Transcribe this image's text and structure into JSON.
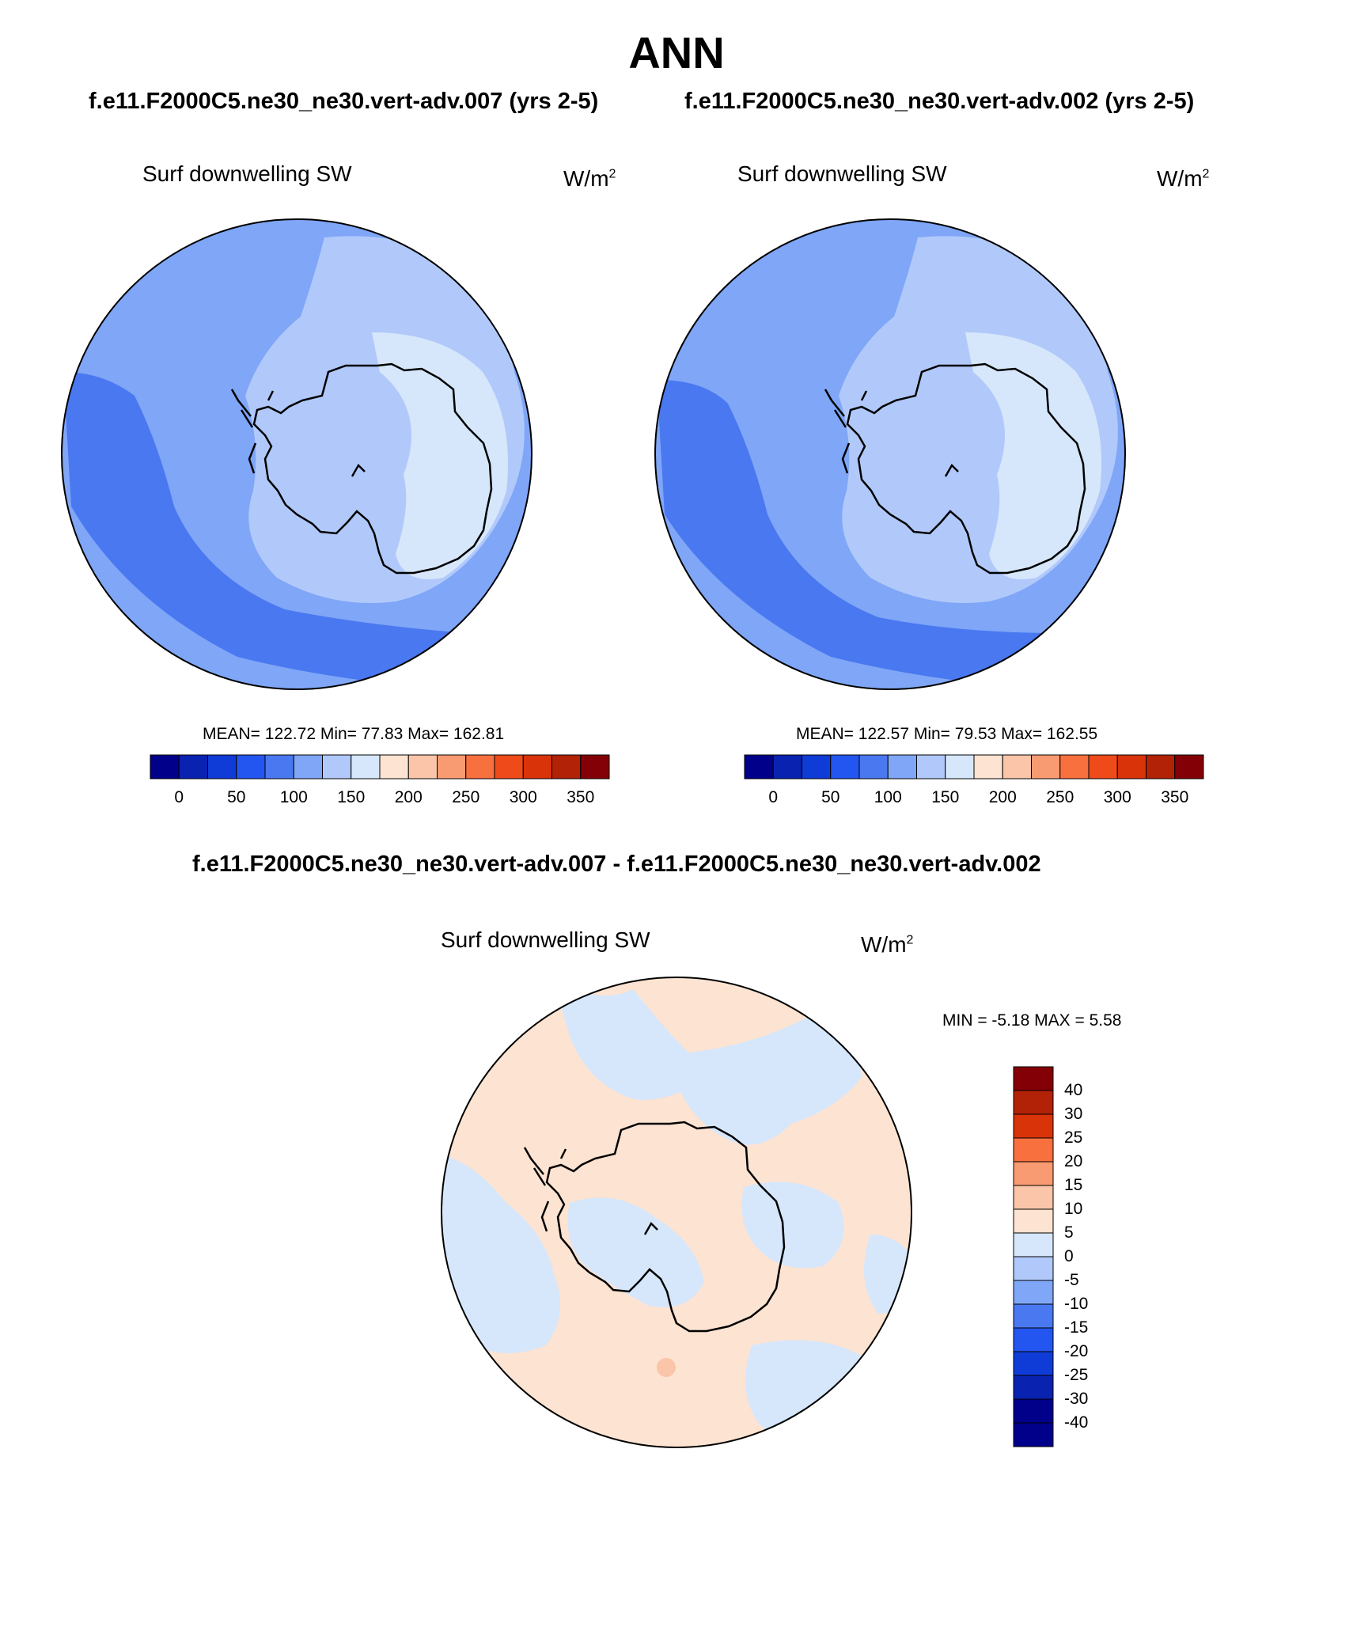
{
  "figure": {
    "title": "ANN",
    "top_left_case": "f.e11.F2000C5.ne30_ne30.vert-adv.007 (yrs 2-5)",
    "top_right_case": "f.e11.F2000C5.ne30_ne30.vert-adv.002 (yrs 2-5)",
    "diff_title": "f.e11.F2000C5.ne30_ne30.vert-adv.007 - f.e11.F2000C5.ne30_ne30.vert-adv.002"
  },
  "panels": [
    {
      "variable": "Surf downwelling SW",
      "unit_base": "W/m",
      "unit_exp": "2",
      "stats": "MEAN= 122.72  Min=  77.83  Max= 162.81"
    },
    {
      "variable": "Surf downwelling SW",
      "unit_base": "W/m",
      "unit_exp": "2",
      "stats": "MEAN= 122.57  Min=  79.53  Max= 162.55"
    },
    {
      "variable": "Surf downwelling SW",
      "unit_base": "W/m",
      "unit_exp": "2",
      "stats": "MIN =  -5.18 MAX =   5.58"
    }
  ],
  "colorbar_abs": {
    "colors": [
      "#00008a",
      "#0a22b0",
      "#0f3bd6",
      "#2356f0",
      "#4a78f0",
      "#7fa6f7",
      "#b1c9fa",
      "#d6e7fc",
      "#fde3d1",
      "#fac5a8",
      "#f89a72",
      "#f7703e",
      "#ef4a1a",
      "#d93309",
      "#b22207",
      "#840007"
    ],
    "labels": [
      "0",
      "50",
      "100",
      "150",
      "200",
      "250",
      "300",
      "350"
    ]
  },
  "colorbar_diff": {
    "colors": [
      "#840007",
      "#b22207",
      "#d93309",
      "#f7703e",
      "#f89a72",
      "#fac5a8",
      "#fde3d1",
      "#d6e7fc",
      "#b1c9fa",
      "#7fa6f7",
      "#4a78f0",
      "#2356f0",
      "#0f3bd6",
      "#0a22b0",
      "#00008a",
      "#00008a"
    ],
    "labels": [
      "40",
      "30",
      "25",
      "20",
      "15",
      "10",
      "5",
      "0",
      "-5",
      "-10",
      "-15",
      "-20",
      "-25",
      "-30",
      "-40"
    ]
  }
}
